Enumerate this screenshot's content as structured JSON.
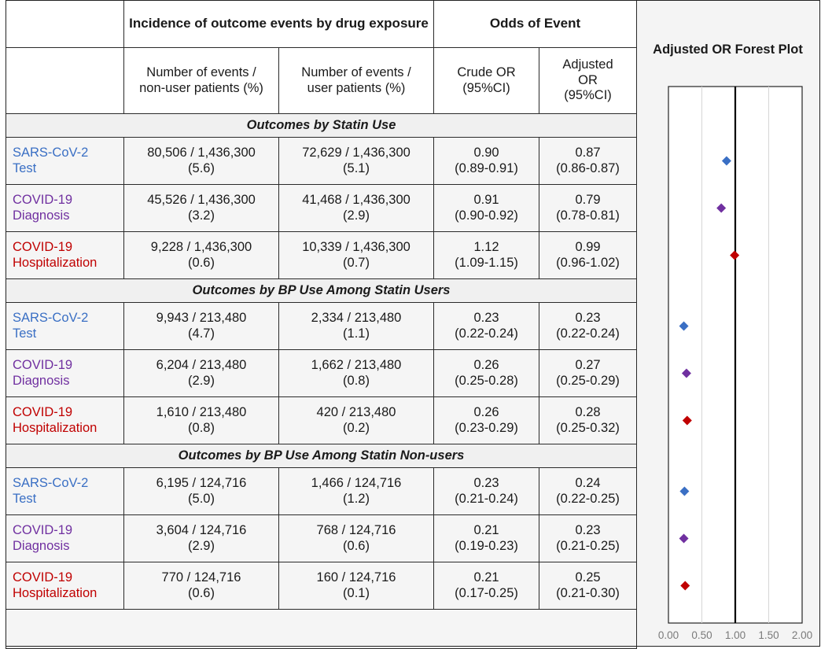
{
  "header": {
    "incidence_title": "Incidence of outcome events by drug exposure",
    "odds_title": "Odds of Event",
    "col_nonuser": "Number of events / non-user patients (%)",
    "col_user": "Number of events / user patients (%)",
    "col_crude": "Crude OR (95%CI)",
    "col_adjusted": "Adjusted OR (95%CI)"
  },
  "sections": [
    {
      "title": "Outcomes by Statin Use",
      "rows": [
        {
          "label1": "SARS-CoV-2",
          "label2": "Test",
          "kind": "test",
          "nonuser": "80,506 / 1,436,300",
          "nonuser_pct": "(5.6)",
          "user": "72,629 / 1,436,300",
          "user_pct": "(5.1)",
          "crude": "0.90",
          "crude_ci": "(0.89-0.91)",
          "adj": "0.87",
          "adj_ci": "(0.86-0.87)"
        },
        {
          "label1": "COVID-19",
          "label2": "Diagnosis",
          "kind": "diag",
          "nonuser": "45,526 / 1,436,300",
          "nonuser_pct": "(3.2)",
          "user": "41,468 / 1,436,300",
          "user_pct": "(2.9)",
          "crude": "0.91",
          "crude_ci": "(0.90-0.92)",
          "adj": "0.79",
          "adj_ci": "(0.78-0.81)"
        },
        {
          "label1": "COVID-19",
          "label2": "Hospitalization",
          "kind": "hosp",
          "nonuser": "9,228 / 1,436,300",
          "nonuser_pct": "(0.6)",
          "user": "10,339 / 1,436,300",
          "user_pct": "(0.7)",
          "crude": "1.12",
          "crude_ci": "(1.09-1.15)",
          "adj": "0.99",
          "adj_ci": "(0.96-1.02)"
        }
      ]
    },
    {
      "title": "Outcomes by BP Use Among Statin Users",
      "rows": [
        {
          "label1": "SARS-CoV-2",
          "label2": "Test",
          "kind": "test",
          "nonuser": "9,943 / 213,480",
          "nonuser_pct": "(4.7)",
          "user": "2,334 / 213,480",
          "user_pct": "(1.1)",
          "crude": "0.23",
          "crude_ci": "(0.22-0.24)",
          "adj": "0.23",
          "adj_ci": "(0.22-0.24)"
        },
        {
          "label1": "COVID-19",
          "label2": "Diagnosis",
          "kind": "diag",
          "nonuser": "6,204 / 213,480",
          "nonuser_pct": "(2.9)",
          "user": "1,662 / 213,480",
          "user_pct": "(0.8)",
          "crude": "0.26",
          "crude_ci": "(0.25-0.28)",
          "adj": "0.27",
          "adj_ci": "(0.25-0.29)"
        },
        {
          "label1": "COVID-19",
          "label2": "Hospitalization",
          "kind": "hosp",
          "nonuser": "1,610 / 213,480",
          "nonuser_pct": "(0.8)",
          "user": "420 / 213,480",
          "user_pct": "(0.2)",
          "crude": "0.26",
          "crude_ci": "(0.23-0.29)",
          "adj": "0.28",
          "adj_ci": "(0.25-0.32)"
        }
      ]
    },
    {
      "title": "Outcomes by BP Use Among Statin Non-users",
      "rows": [
        {
          "label1": "SARS-CoV-2",
          "label2": "Test",
          "kind": "test",
          "nonuser": "6,195 / 124,716",
          "nonuser_pct": "(5.0)",
          "user": "1,466 / 124,716",
          "user_pct": "(1.2)",
          "crude": "0.23",
          "crude_ci": "(0.21-0.24)",
          "adj": "0.24",
          "adj_ci": "(0.22-0.25)"
        },
        {
          "label1": "COVID-19",
          "label2": "Diagnosis",
          "kind": "diag",
          "nonuser": "3,604 / 124,716",
          "nonuser_pct": "(2.9)",
          "user": "768 / 124,716",
          "user_pct": "(0.6)",
          "crude": "0.21",
          "crude_ci": "(0.19-0.23)",
          "adj": "0.23",
          "adj_ci": "(0.21-0.25)"
        },
        {
          "label1": "COVID-19",
          "label2": "Hospitalization",
          "kind": "hosp",
          "nonuser": "770 / 124,716",
          "nonuser_pct": "(0.6)",
          "user": "160 / 124,716",
          "user_pct": "(0.1)",
          "crude": "0.21",
          "crude_ci": "(0.17-0.25)",
          "adj": "0.25",
          "adj_ci": "(0.21-0.30)"
        }
      ]
    }
  ],
  "colors": {
    "test": "#3a6fc4",
    "diag": "#7030a0",
    "hosp": "#c00000"
  },
  "chart_data": {
    "type": "scatter",
    "title": "Adjusted OR Forest Plot",
    "xlim": [
      0,
      2
    ],
    "x_ticks": [
      "0.00",
      "0.50",
      "1.00",
      "1.50",
      "2.00"
    ],
    "reference_line": 1.0,
    "grid": true,
    "points": [
      {
        "section": "Outcomes by Statin Use",
        "outcome": "SARS-CoV-2 Test",
        "x": 0.87,
        "color": "#3a6fc4"
      },
      {
        "section": "Outcomes by Statin Use",
        "outcome": "COVID-19 Diagnosis",
        "x": 0.79,
        "color": "#7030a0"
      },
      {
        "section": "Outcomes by Statin Use",
        "outcome": "COVID-19 Hospitalization",
        "x": 0.99,
        "color": "#c00000"
      },
      {
        "section": "Outcomes by BP Use Among Statin Users",
        "outcome": "SARS-CoV-2 Test",
        "x": 0.23,
        "color": "#3a6fc4"
      },
      {
        "section": "Outcomes by BP Use Among Statin Users",
        "outcome": "COVID-19 Diagnosis",
        "x": 0.27,
        "color": "#7030a0"
      },
      {
        "section": "Outcomes by BP Use Among Statin Users",
        "outcome": "COVID-19 Hospitalization",
        "x": 0.28,
        "color": "#c00000"
      },
      {
        "section": "Outcomes by BP Use Among Statin Non-users",
        "outcome": "SARS-CoV-2 Test",
        "x": 0.24,
        "color": "#3a6fc4"
      },
      {
        "section": "Outcomes by BP Use Among Statin Non-users",
        "outcome": "COVID-19 Diagnosis",
        "x": 0.23,
        "color": "#7030a0"
      },
      {
        "section": "Outcomes by BP Use Among Statin Non-users",
        "outcome": "COVID-19 Hospitalization",
        "x": 0.25,
        "color": "#c00000"
      }
    ]
  }
}
